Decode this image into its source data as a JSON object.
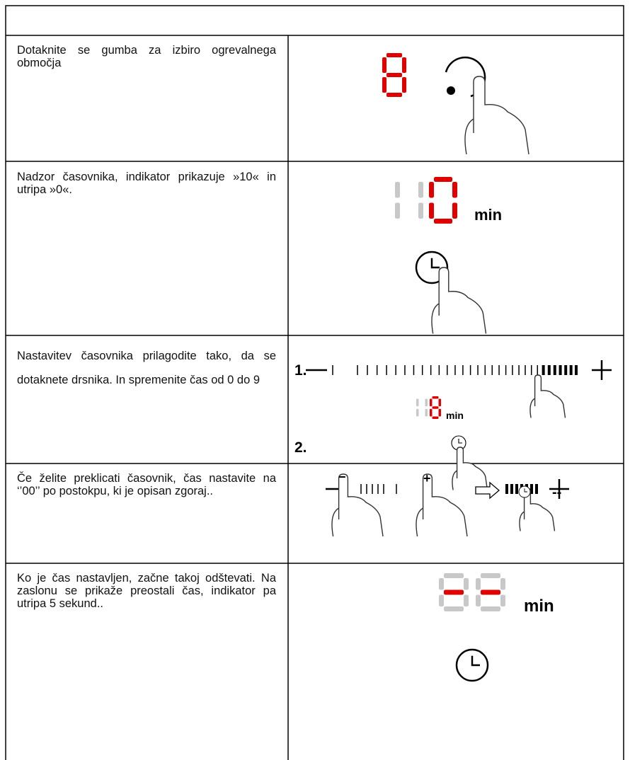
{
  "table": {
    "rows": [
      {
        "text": "Dotaknite se gumba za izbiro ogrevalnega območja"
      },
      {
        "text": "Nadzor časovnika, indikator prikazuje »10« in utripa »0«.",
        "figure": {
          "unit": "min"
        }
      },
      {
        "text": "Nastavitev časovnika prilagodite tako, da se dotaknete drsnika. In spremenite čas od 0 do 9",
        "figure": {
          "step1": "1.",
          "unit": "min",
          "step2": "2."
        }
      },
      {
        "text": "Če želite preklicati časovnik, čas nastavite na ‘’00’’ po postokpu, ki je opisan zgoraj..",
        "figure": {
          "display": "--"
        }
      },
      {
        "text": "Ko je čas nastavljen, začne takoj odštevati. Na zaslonu se prikaže preostali čas, indikator pa utripa 5 sekund..",
        "figure": {
          "unit": "min"
        }
      }
    ]
  }
}
